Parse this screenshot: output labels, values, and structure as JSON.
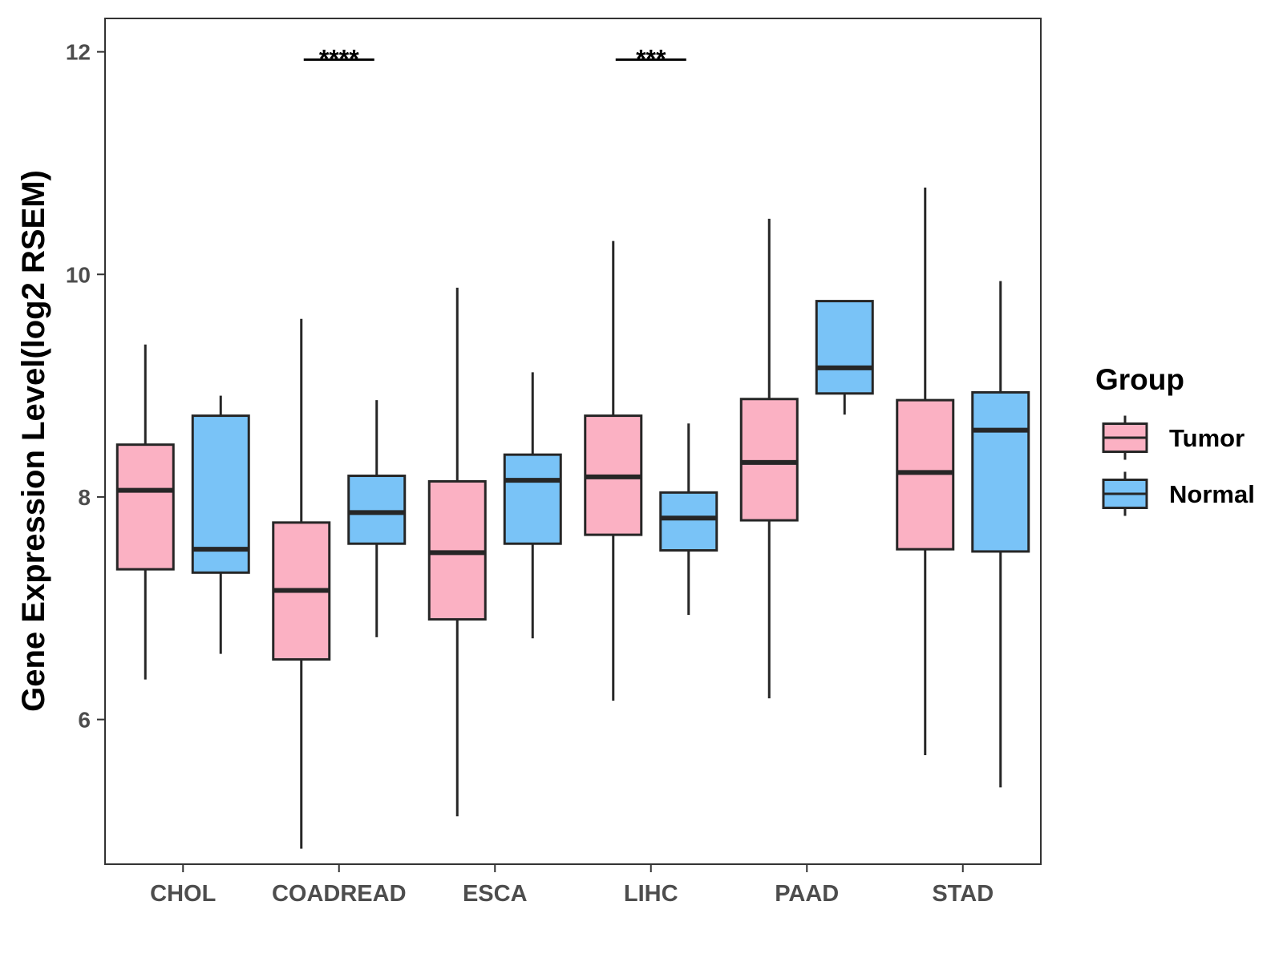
{
  "chart_data": {
    "type": "box",
    "title": "",
    "xlabel": "",
    "ylabel": "Gene Expression Level(log2 RSEM)",
    "ylim": [
      4.7,
      12.3
    ],
    "yticks": [
      6,
      8,
      10,
      12
    ],
    "ytick_labels": [
      "6",
      "8",
      "10",
      "12"
    ],
    "grid": false,
    "legend_position": "right",
    "categories": [
      "CHOL",
      "COADREAD",
      "ESCA",
      "LIHC",
      "PAAD",
      "STAD"
    ],
    "legend": {
      "title": "Group",
      "items": [
        {
          "label": "Tumor",
          "color": "#FBB1C3"
        },
        {
          "label": "Normal",
          "color": "#79C3F7"
        }
      ]
    },
    "series": [
      {
        "name": "Tumor",
        "color": "#FBB1C3",
        "boxes": [
          {
            "min": 6.36,
            "q1": 7.35,
            "median": 8.06,
            "q3": 8.47,
            "max": 9.37
          },
          {
            "min": 4.84,
            "q1": 6.54,
            "median": 7.16,
            "q3": 7.77,
            "max": 9.6
          },
          {
            "min": 5.13,
            "q1": 6.9,
            "median": 7.5,
            "q3": 8.14,
            "max": 9.88
          },
          {
            "min": 6.17,
            "q1": 7.66,
            "median": 8.18,
            "q3": 8.73,
            "max": 10.3
          },
          {
            "min": 6.19,
            "q1": 7.79,
            "median": 8.31,
            "q3": 8.88,
            "max": 10.5
          },
          {
            "min": 5.68,
            "q1": 7.53,
            "median": 8.22,
            "q3": 8.87,
            "max": 10.78
          }
        ]
      },
      {
        "name": "Normal",
        "color": "#79C3F7",
        "boxes": [
          {
            "min": 6.59,
            "q1": 7.32,
            "median": 7.53,
            "q3": 8.73,
            "max": 8.91
          },
          {
            "min": 6.74,
            "q1": 7.58,
            "median": 7.86,
            "q3": 8.19,
            "max": 8.87
          },
          {
            "min": 6.73,
            "q1": 7.58,
            "median": 8.15,
            "q3": 8.38,
            "max": 9.12
          },
          {
            "min": 6.94,
            "q1": 7.52,
            "median": 7.81,
            "q3": 8.04,
            "max": 8.66
          },
          {
            "min": 8.74,
            "q1": 8.93,
            "median": 9.16,
            "q3": 9.76,
            "max": 9.76
          },
          {
            "min": 5.39,
            "q1": 7.51,
            "median": 8.6,
            "q3": 8.94,
            "max": 9.94
          }
        ]
      }
    ],
    "annotations": [
      {
        "category": "COADREAD",
        "text": "****",
        "y": 11.93
      },
      {
        "category": "LIHC",
        "text": "***",
        "y": 11.93
      }
    ]
  }
}
